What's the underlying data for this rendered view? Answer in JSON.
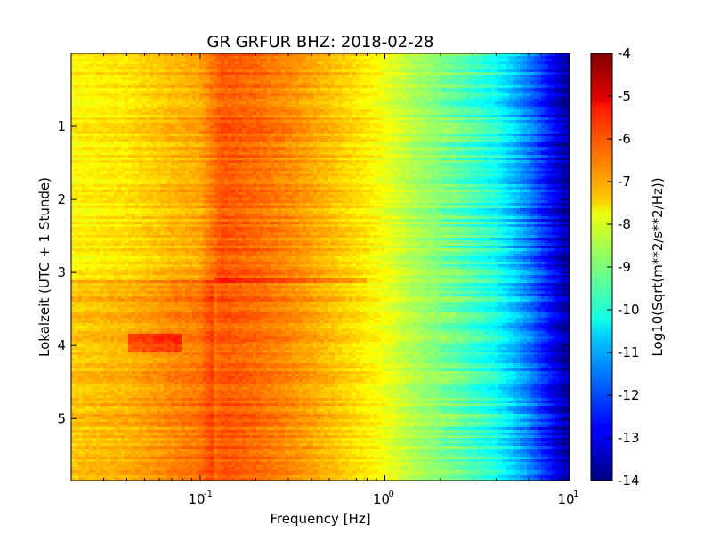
{
  "chart_data": {
    "type": "heatmap",
    "title": "GR GRFUR BHZ: 2018-02-28",
    "xlabel": "Frequency [Hz]",
    "ylabel": "Lokalzeit (UTC + 1 Stunde)",
    "x_scale": "log",
    "xlim": [
      0.02,
      10
    ],
    "ylim": [
      5.85,
      0
    ],
    "x_ticks": [
      {
        "value": 0.1,
        "base": "10",
        "exp": "-1"
      },
      {
        "value": 1,
        "base": "10",
        "exp": "0"
      },
      {
        "value": 10,
        "base": "10",
        "exp": "1"
      }
    ],
    "y_ticks": [
      {
        "value": 1,
        "label": "1"
      },
      {
        "value": 2,
        "label": "2"
      },
      {
        "value": 3,
        "label": "3"
      },
      {
        "value": 4,
        "label": "4"
      },
      {
        "value": 5,
        "label": "5"
      }
    ],
    "colormap": "jet",
    "colorbar": {
      "label": "Log10(Sqrt(m**2/s**2/Hz))",
      "range": [
        -14,
        -4
      ],
      "ticks": [
        "-4",
        "-5",
        "-6",
        "-7",
        "-8",
        "-9",
        "-10",
        "-11",
        "-12",
        "-13",
        "-14"
      ]
    },
    "spectrum_profile": [
      {
        "f": 0.02,
        "v": -7.7
      },
      {
        "f": 0.04,
        "v": -7.5
      },
      {
        "f": 0.07,
        "v": -7.1
      },
      {
        "f": 0.1,
        "v": -6.9
      },
      {
        "f": 0.13,
        "v": -6.1
      },
      {
        "f": 0.2,
        "v": -6.3
      },
      {
        "f": 0.3,
        "v": -6.6
      },
      {
        "f": 0.5,
        "v": -7.1
      },
      {
        "f": 0.8,
        "v": -7.6
      },
      {
        "f": 1.0,
        "v": -7.9
      },
      {
        "f": 1.5,
        "v": -8.6
      },
      {
        "f": 2.5,
        "v": -9.3
      },
      {
        "f": 4.0,
        "v": -10.1
      },
      {
        "f": 6.0,
        "v": -11.5
      },
      {
        "f": 8.0,
        "v": -12.8
      },
      {
        "f": 10.0,
        "v": -13.8
      }
    ],
    "features": [
      {
        "description": "low-frequency noise increase after about 3.1 h",
        "time_start": 3.1,
        "time_end": 5.85,
        "f_max": 0.12,
        "delta": 0.5
      },
      {
        "description": "energy peak near 4 h",
        "time_start": 3.85,
        "time_end": 4.1,
        "f_min": 0.04,
        "f_max": 0.08,
        "delta": 0.9
      },
      {
        "description": "horizontal line near 3.1 h",
        "time_start": 3.08,
        "time_end": 3.16,
        "f_min": 0.12,
        "f_max": 0.8,
        "delta": 0.45
      }
    ]
  }
}
